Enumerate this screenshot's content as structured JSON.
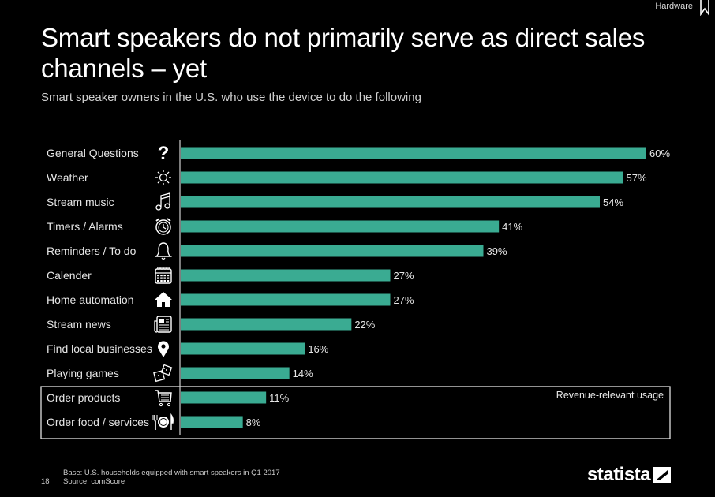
{
  "header": {
    "topic": "Hardware"
  },
  "title": "Smart speakers do not primarily serve as direct sales channels – yet",
  "subtitle": "Smart speaker owners in the U.S. who use the device to do the following",
  "colors": {
    "bar": "#3aab92",
    "background": "#000000",
    "text": "#ffffff"
  },
  "chart_data": {
    "type": "bar",
    "orientation": "horizontal",
    "title": "Smart speakers do not primarily serve as direct sales channels – yet",
    "subtitle": "Smart speaker owners in the U.S. who use the device to do the following",
    "xlabel": "",
    "ylabel": "",
    "unit": "%",
    "xlim": [
      0,
      60
    ],
    "grid": false,
    "categories": [
      "General Questions",
      "Weather",
      "Stream music",
      "Timers / Alarms",
      "Reminders / To do",
      "Calender",
      "Home automation",
      "Stream news",
      "Find local businesses",
      "Playing games",
      "Order products",
      "Order food / services"
    ],
    "icons": [
      "question-icon",
      "sun-icon",
      "music-note-icon",
      "alarm-clock-icon",
      "bell-icon",
      "calendar-icon",
      "house-icon",
      "newspaper-icon",
      "map-pin-icon",
      "dice-icon",
      "shopping-cart-icon",
      "plate-cutlery-icon"
    ],
    "values": [
      60,
      57,
      54,
      41,
      39,
      27,
      27,
      22,
      16,
      14,
      11,
      8
    ],
    "value_labels": [
      "60%",
      "57%",
      "54%",
      "41%",
      "39%",
      "27%",
      "27%",
      "22%",
      "16%",
      "14%",
      "11%",
      "8%"
    ],
    "annotations": [
      {
        "text": "Revenue-relevant usage",
        "applies_to": [
          "Order products",
          "Order food / services"
        ]
      }
    ]
  },
  "footer": {
    "page_number": "18",
    "base": "Base: U.S. households equipped with smart speakers in Q1 2017",
    "source": "Source: comScore",
    "logo": "statista"
  }
}
